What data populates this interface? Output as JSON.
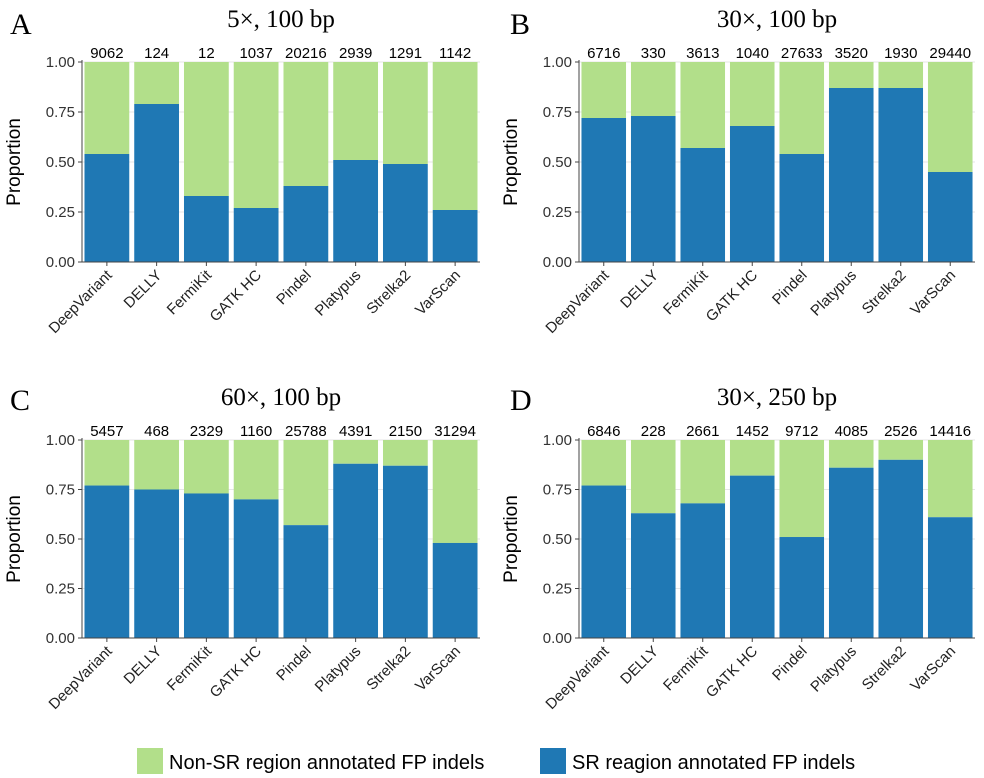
{
  "y_axis_title": "Proportion",
  "legend": [
    {
      "label": "Non-SR region annotated FP indels",
      "color": "#b2df8a"
    },
    {
      "label": "SR reagion annotated FP indels",
      "color": "#1f78b4"
    }
  ],
  "colors": {
    "non_sr": "#b2df8a",
    "sr": "#1f78b4"
  },
  "chart_data": [
    {
      "panel": "A",
      "title": "5×, 100 bp",
      "type": "bar",
      "stacked": true,
      "categories": [
        "DeepVariant",
        "DELLY",
        "FermiKit",
        "GATK HC",
        "Pindel",
        "Platypus",
        "Strelka2",
        "VarScan"
      ],
      "counts": [
        "9062",
        "124",
        "12",
        "1037",
        "20216",
        "2939",
        "1291",
        "1142"
      ],
      "series": [
        {
          "name": "SR reagion annotated FP indels",
          "values": [
            0.54,
            0.79,
            0.33,
            0.27,
            0.38,
            0.51,
            0.49,
            0.26
          ]
        },
        {
          "name": "Non-SR region annotated FP indels",
          "values": [
            0.46,
            0.21,
            0.67,
            0.73,
            0.62,
            0.49,
            0.51,
            0.74
          ]
        }
      ],
      "ylim": [
        0,
        1
      ],
      "yticks": [
        "0.00",
        "0.25",
        "0.50",
        "0.75",
        "1.00"
      ]
    },
    {
      "panel": "B",
      "title": "30×, 100 bp",
      "type": "bar",
      "stacked": true,
      "categories": [
        "DeepVariant",
        "DELLY",
        "FermiKit",
        "GATK HC",
        "Pindel",
        "Platypus",
        "Strelka2",
        "VarScan"
      ],
      "counts": [
        "6716",
        "330",
        "3613",
        "1040",
        "27633",
        "3520",
        "1930",
        "29440"
      ],
      "series": [
        {
          "name": "SR reagion annotated FP indels",
          "values": [
            0.72,
            0.73,
            0.57,
            0.68,
            0.54,
            0.87,
            0.87,
            0.45
          ]
        },
        {
          "name": "Non-SR region annotated FP indels",
          "values": [
            0.28,
            0.27,
            0.43,
            0.32,
            0.46,
            0.13,
            0.13,
            0.55
          ]
        }
      ],
      "ylim": [
        0,
        1
      ],
      "yticks": [
        "0.00",
        "0.25",
        "0.50",
        "0.75",
        "1.00"
      ]
    },
    {
      "panel": "C",
      "title": "60×, 100 bp",
      "type": "bar",
      "stacked": true,
      "categories": [
        "DeepVariant",
        "DELLY",
        "FermiKit",
        "GATK HC",
        "Pindel",
        "Platypus",
        "Strelka2",
        "VarScan"
      ],
      "counts": [
        "5457",
        "468",
        "2329",
        "1160",
        "25788",
        "4391",
        "2150",
        "31294"
      ],
      "series": [
        {
          "name": "SR reagion annotated FP indels",
          "values": [
            0.77,
            0.75,
            0.73,
            0.7,
            0.57,
            0.88,
            0.87,
            0.48
          ]
        },
        {
          "name": "Non-SR region annotated FP indels",
          "values": [
            0.23,
            0.25,
            0.27,
            0.3,
            0.43,
            0.12,
            0.13,
            0.52
          ]
        }
      ],
      "ylim": [
        0,
        1
      ],
      "yticks": [
        "0.00",
        "0.25",
        "0.50",
        "0.75",
        "1.00"
      ]
    },
    {
      "panel": "D",
      "title": "30×, 250 bp",
      "type": "bar",
      "stacked": true,
      "categories": [
        "DeepVariant",
        "DELLY",
        "FermiKit",
        "GATK HC",
        "Pindel",
        "Platypus",
        "Strelka2",
        "VarScan"
      ],
      "counts": [
        "6846",
        "228",
        "2661",
        "1452",
        "9712",
        "4085",
        "2526",
        "14416"
      ],
      "series": [
        {
          "name": "SR reagion annotated FP indels",
          "values": [
            0.77,
            0.63,
            0.68,
            0.82,
            0.51,
            0.86,
            0.9,
            0.61
          ]
        },
        {
          "name": "Non-SR region annotated FP indels",
          "values": [
            0.23,
            0.37,
            0.32,
            0.18,
            0.49,
            0.14,
            0.1,
            0.39
          ]
        }
      ],
      "ylim": [
        0,
        1
      ],
      "yticks": [
        "0.00",
        "0.25",
        "0.50",
        "0.75",
        "1.00"
      ]
    }
  ]
}
